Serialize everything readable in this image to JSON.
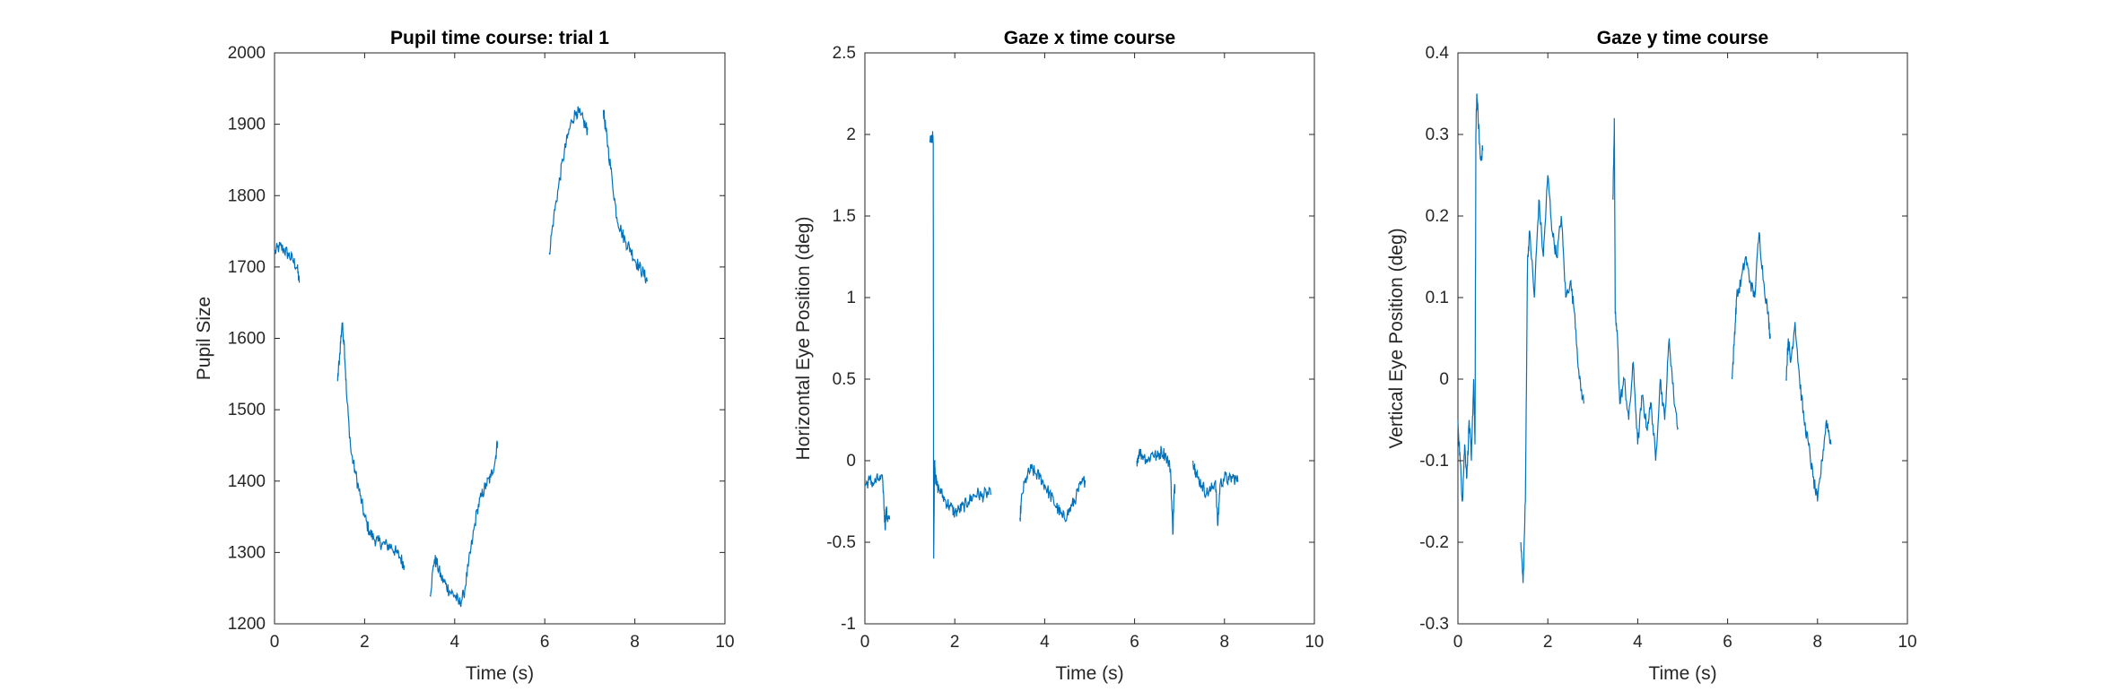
{
  "chart_data": [
    {
      "type": "line",
      "title": "Pupil time course: trial 1",
      "xlabel": "Time (s)",
      "ylabel": "Pupil Size",
      "xlim": [
        0,
        10
      ],
      "ylim": [
        1200,
        2000
      ],
      "xticks": [
        "0",
        "2",
        "4",
        "6",
        "8",
        "10"
      ],
      "yticks": [
        "1200",
        "1300",
        "1400",
        "1500",
        "1600",
        "1700",
        "1800",
        "1900",
        "2000"
      ],
      "grid": false,
      "series_color": "#0072BD",
      "segments": [
        {
          "x": [
            0.0,
            0.1,
            0.2,
            0.3,
            0.4,
            0.5,
            0.55
          ],
          "y": [
            1720,
            1728,
            1725,
            1718,
            1710,
            1700,
            1678
          ]
        },
        {
          "x": [
            1.4,
            1.45,
            1.5,
            1.55,
            1.6,
            1.7,
            1.8,
            1.9,
            2.0,
            2.1,
            2.2,
            2.3,
            2.4,
            2.5,
            2.6,
            2.7,
            2.8,
            2.88
          ],
          "y": [
            1540,
            1580,
            1622,
            1590,
            1520,
            1440,
            1410,
            1380,
            1350,
            1330,
            1320,
            1315,
            1312,
            1310,
            1308,
            1300,
            1292,
            1282
          ]
        },
        {
          "x": [
            3.45,
            3.55,
            3.6,
            3.7,
            3.8,
            3.9,
            4.0,
            4.1,
            4.2,
            4.3,
            4.4,
            4.5,
            4.6,
            4.7,
            4.8,
            4.9,
            4.95
          ],
          "y": [
            1240,
            1290,
            1285,
            1265,
            1255,
            1245,
            1240,
            1228,
            1240,
            1280,
            1320,
            1360,
            1380,
            1395,
            1405,
            1430,
            1455
          ]
        },
        {
          "x": [
            6.1,
            6.2,
            6.3,
            6.4,
            6.5,
            6.6,
            6.7,
            6.8,
            6.9,
            6.95
          ],
          "y": [
            1720,
            1770,
            1810,
            1850,
            1880,
            1905,
            1918,
            1912,
            1898,
            1892
          ]
        },
        {
          "x": [
            7.3,
            7.35,
            7.4,
            7.5,
            7.6,
            7.7,
            7.8,
            7.9,
            8.0,
            8.1,
            8.2,
            8.28
          ],
          "y": [
            1920,
            1895,
            1870,
            1820,
            1770,
            1750,
            1735,
            1725,
            1710,
            1700,
            1690,
            1680
          ]
        }
      ]
    },
    {
      "type": "line",
      "title": "Gaze x time course",
      "xlabel": "Time (s)",
      "ylabel": "Horizontal Eye Position (deg)",
      "xlim": [
        0,
        10
      ],
      "ylim": [
        -1,
        2.5
      ],
      "xticks": [
        "0",
        "2",
        "4",
        "6",
        "8",
        "10"
      ],
      "yticks": [
        "-1",
        "-0.5",
        "0",
        "0.5",
        "1",
        "1.5",
        "2",
        "2.5"
      ],
      "grid": false,
      "series_color": "#0072BD",
      "segments": [
        {
          "x": [
            0.0,
            0.1,
            0.2,
            0.3,
            0.4,
            0.45,
            0.47,
            0.5,
            0.55
          ],
          "y": [
            -0.15,
            -0.12,
            -0.14,
            -0.11,
            -0.13,
            -0.42,
            -0.3,
            -0.35,
            -0.36
          ]
        },
        {
          "x": [
            1.45,
            1.5,
            1.52,
            1.53,
            1.55,
            1.57,
            1.6,
            1.7,
            1.8,
            1.9,
            2.0,
            2.1,
            2.2,
            2.3,
            2.4,
            2.5,
            2.6,
            2.7,
            2.8
          ],
          "y": [
            1.95,
            2.0,
            1.95,
            -0.6,
            0.0,
            -0.1,
            -0.15,
            -0.2,
            -0.25,
            -0.28,
            -0.32,
            -0.3,
            -0.28,
            -0.25,
            -0.22,
            -0.2,
            -0.22,
            -0.2,
            -0.21
          ]
        },
        {
          "x": [
            3.45,
            3.5,
            3.6,
            3.7,
            3.8,
            3.9,
            4.0,
            4.1,
            4.2,
            4.3,
            4.4,
            4.5,
            4.6,
            4.7,
            4.8,
            4.9
          ],
          "y": [
            -0.35,
            -0.2,
            -0.1,
            -0.05,
            -0.08,
            -0.1,
            -0.15,
            -0.2,
            -0.25,
            -0.3,
            -0.35,
            -0.33,
            -0.28,
            -0.22,
            -0.15,
            -0.12
          ]
        },
        {
          "x": [
            6.05,
            6.1,
            6.2,
            6.3,
            6.4,
            6.5,
            6.6,
            6.7,
            6.8,
            6.85,
            6.88,
            6.9
          ],
          "y": [
            0.0,
            0.05,
            0.03,
            0.0,
            0.05,
            0.02,
            0.06,
            0.03,
            -0.05,
            -0.45,
            -0.2,
            -0.15
          ]
        },
        {
          "x": [
            7.3,
            7.35,
            7.4,
            7.5,
            7.6,
            7.7,
            7.8,
            7.85,
            7.9,
            8.0,
            8.1,
            8.2,
            8.3
          ],
          "y": [
            0.0,
            -0.05,
            -0.1,
            -0.15,
            -0.2,
            -0.18,
            -0.12,
            -0.4,
            -0.15,
            -0.1,
            -0.12,
            -0.1,
            -0.13
          ]
        }
      ]
    },
    {
      "type": "line",
      "title": "Gaze y time course",
      "xlabel": "Time (s)",
      "ylabel": "Vertical Eye Position (deg)",
      "xlim": [
        0,
        10
      ],
      "ylim": [
        -0.3,
        0.4
      ],
      "xticks": [
        "0",
        "2",
        "4",
        "6",
        "8",
        "10"
      ],
      "yticks": [
        "-0.3",
        "-0.2",
        "-0.1",
        "0",
        "0.1",
        "0.2",
        "0.3",
        "0.4"
      ],
      "grid": false,
      "series_color": "#0072BD",
      "segments": [
        {
          "x": [
            0.0,
            0.05,
            0.1,
            0.15,
            0.2,
            0.25,
            0.3,
            0.35,
            0.38,
            0.4,
            0.42,
            0.45,
            0.5,
            0.55
          ],
          "y": [
            -0.05,
            -0.1,
            -0.15,
            -0.08,
            -0.12,
            -0.05,
            -0.1,
            0.0,
            -0.08,
            0.3,
            0.35,
            0.32,
            0.27,
            0.28
          ]
        },
        {
          "x": [
            1.4,
            1.45,
            1.5,
            1.55,
            1.6,
            1.7,
            1.8,
            1.9,
            2.0,
            2.1,
            2.2,
            2.3,
            2.4,
            2.5,
            2.6,
            2.7,
            2.8
          ],
          "y": [
            -0.2,
            -0.25,
            -0.15,
            0.15,
            0.18,
            0.1,
            0.22,
            0.15,
            0.25,
            0.18,
            0.15,
            0.2,
            0.1,
            0.12,
            0.08,
            0.0,
            -0.03
          ]
        },
        {
          "x": [
            3.45,
            3.48,
            3.5,
            3.55,
            3.6,
            3.7,
            3.8,
            3.9,
            4.0,
            4.1,
            4.2,
            4.3,
            4.4,
            4.5,
            4.6,
            4.7,
            4.8,
            4.9
          ],
          "y": [
            0.22,
            0.32,
            0.08,
            0.05,
            -0.03,
            0.0,
            -0.05,
            0.02,
            -0.08,
            -0.02,
            -0.06,
            -0.03,
            -0.1,
            0.0,
            -0.05,
            0.05,
            -0.02,
            -0.06
          ]
        },
        {
          "x": [
            6.1,
            6.15,
            6.2,
            6.3,
            6.4,
            6.5,
            6.6,
            6.7,
            6.8,
            6.9,
            6.95
          ],
          "y": [
            0.0,
            0.05,
            0.1,
            0.12,
            0.15,
            0.12,
            0.1,
            0.18,
            0.12,
            0.08,
            0.05
          ]
        },
        {
          "x": [
            7.3,
            7.35,
            7.4,
            7.5,
            7.6,
            7.7,
            7.8,
            7.9,
            8.0,
            8.1,
            8.2,
            8.3
          ],
          "y": [
            0.0,
            0.05,
            0.02,
            0.07,
            0.0,
            -0.05,
            -0.08,
            -0.12,
            -0.15,
            -0.1,
            -0.05,
            -0.08
          ]
        }
      ]
    }
  ]
}
